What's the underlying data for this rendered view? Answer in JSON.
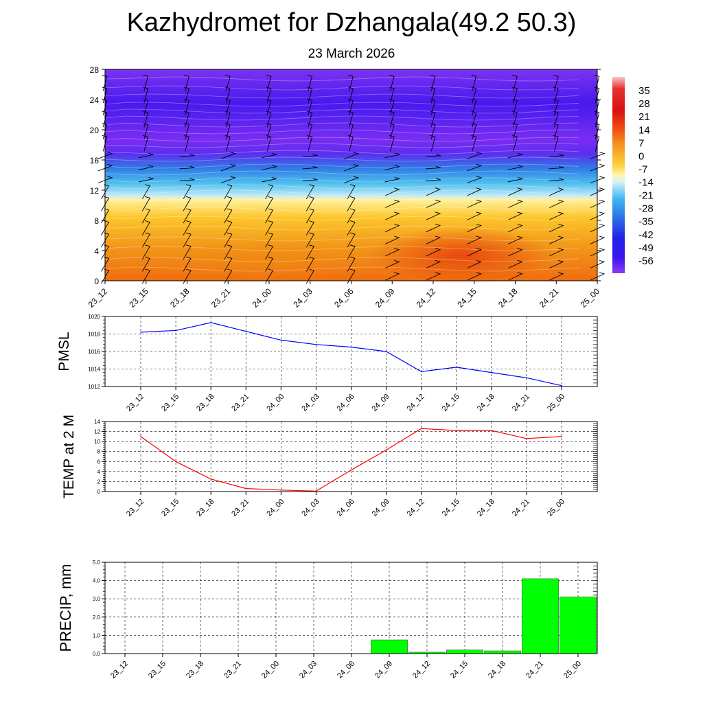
{
  "header": {
    "title": "Kazhydromet for Dzhangala(49.2 50.3)",
    "subtitle": "23 March 2026"
  },
  "time_labels": [
    "23_12",
    "23_15",
    "23_18",
    "23_21",
    "24_00",
    "24_03",
    "24_06",
    "24_09",
    "24_12",
    "24_15",
    "24_18",
    "24_21",
    "25_00"
  ],
  "colors": {
    "pmsl_line": "#0000ff",
    "temp_line": "#ff0000",
    "precip_bar": "#00ff00",
    "grid": "#000000"
  },
  "chart_data": [
    {
      "type": "heatmap",
      "title": "Kazhydromet for Dzhangala(49.2 50.3)",
      "subtitle": "23 March 2026",
      "x_labels": [
        "23_12",
        "23_15",
        "23_18",
        "23_21",
        "24_00",
        "24_03",
        "24_06",
        "24_09",
        "24_12",
        "24_15",
        "24_18",
        "24_21",
        "25_00"
      ],
      "y_ticks": [
        0,
        4,
        8,
        12,
        16,
        20,
        24,
        28
      ],
      "ylim": [
        0,
        28
      ],
      "colorbar_labels": [
        "35",
        "28",
        "21",
        "14",
        "7",
        "0",
        "-7",
        "-14",
        "-21",
        "-28",
        "-35",
        "-42",
        "-49",
        "-56"
      ],
      "colorbar_range": [
        -63,
        42
      ],
      "features": [
        "wind barbs at each time column",
        "contour lines"
      ],
      "grid": false
    },
    {
      "type": "line",
      "ylabel": "PMSL",
      "categories": [
        "23_12",
        "23_15",
        "23_18",
        "23_21",
        "24_00",
        "24_03",
        "24_06",
        "24_09",
        "24_12",
        "24_15",
        "24_18",
        "24_21",
        "25_00"
      ],
      "values": [
        1018.2,
        1018.4,
        1019.3,
        1018.3,
        1017.3,
        1016.8,
        1016.5,
        1016.0,
        1013.7,
        1014.2,
        1013.6,
        1013.0,
        1012.1
      ],
      "y_ticks": [
        1012,
        1014,
        1016,
        1018,
        1020
      ],
      "ylim": [
        1012,
        1020
      ],
      "grid": true
    },
    {
      "type": "line",
      "ylabel": "TEMP at 2 M",
      "categories": [
        "23_12",
        "23_15",
        "23_18",
        "23_21",
        "24_00",
        "24_03",
        "24_06",
        "24_09",
        "24_12",
        "24_15",
        "24_18",
        "24_21",
        "25_00"
      ],
      "values": [
        11.0,
        6.0,
        2.5,
        0.6,
        0.3,
        0.1,
        4.3,
        8.3,
        12.6,
        12.2,
        12.2,
        10.6,
        11.0
      ],
      "y_ticks": [
        0,
        2,
        4,
        6,
        8,
        10,
        12,
        14
      ],
      "ylim": [
        0,
        14
      ],
      "grid": true
    },
    {
      "type": "bar",
      "ylabel": "PRECIP, mm",
      "categories": [
        "23_12",
        "23_15",
        "23_18",
        "23_21",
        "24_00",
        "24_03",
        "24_06",
        "24_09",
        "24_12",
        "24_15",
        "24_18",
        "24_21",
        "25_00"
      ],
      "values": [
        0,
        0,
        0,
        0,
        0,
        0,
        0,
        0.75,
        0.08,
        0.2,
        0.15,
        4.1,
        3.1
      ],
      "y_ticks": [
        "0.0",
        "1.0",
        "2.0",
        "3.0",
        "4.0",
        "5.0"
      ],
      "ylim": [
        0,
        5
      ],
      "grid": true
    }
  ]
}
